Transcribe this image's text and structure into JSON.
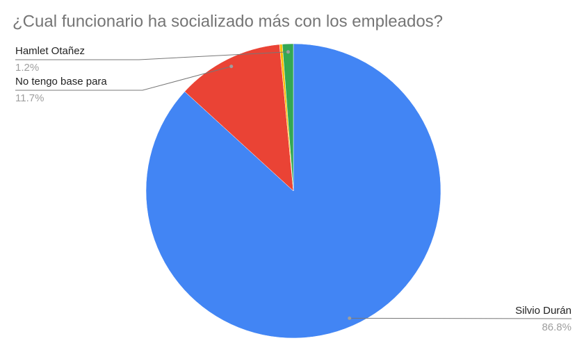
{
  "chart_data": {
    "type": "pie",
    "title": "¿Cual funcionario ha socializado más con los empleados?",
    "categories": [
      "Silvio Durán",
      "No tengo base para",
      null,
      "Hamlet Otañez"
    ],
    "values": [
      86.8,
      11.7,
      0.3,
      1.2
    ],
    "value_labels": [
      "86.8%",
      "11.7%",
      null,
      "1.2%"
    ],
    "colors": [
      "#4285f4",
      "#ea4335",
      "#fbbc04",
      "#34a853"
    ]
  }
}
